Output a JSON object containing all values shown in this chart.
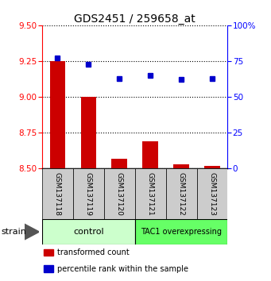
{
  "title": "GDS2451 / 259658_at",
  "samples": [
    "GSM137118",
    "GSM137119",
    "GSM137120",
    "GSM137121",
    "GSM137122",
    "GSM137123"
  ],
  "transformed_count": [
    9.25,
    9.0,
    8.57,
    8.69,
    8.53,
    8.52
  ],
  "percentile_rank": [
    77,
    73,
    63,
    65,
    62,
    63
  ],
  "ylim_left": [
    8.5,
    9.5
  ],
  "ylim_right": [
    0,
    100
  ],
  "yticks_left": [
    8.5,
    8.75,
    9.0,
    9.25,
    9.5
  ],
  "yticks_right": [
    0,
    25,
    50,
    75,
    100
  ],
  "bar_color": "#cc0000",
  "dot_color": "#0000cc",
  "bar_bottom": 8.5,
  "legend_items": [
    {
      "color": "#cc0000",
      "label": "transformed count"
    },
    {
      "color": "#0000cc",
      "label": "percentile rank within the sample"
    }
  ],
  "title_fontsize": 10,
  "tick_fontsize": 7.5,
  "sample_fontsize": 6.5,
  "group_fontsize": 8,
  "legend_fontsize": 7,
  "strain_fontsize": 8,
  "ctrl_color": "#ccffcc",
  "tac1_color": "#66ff66",
  "gray_color": "#cccccc"
}
